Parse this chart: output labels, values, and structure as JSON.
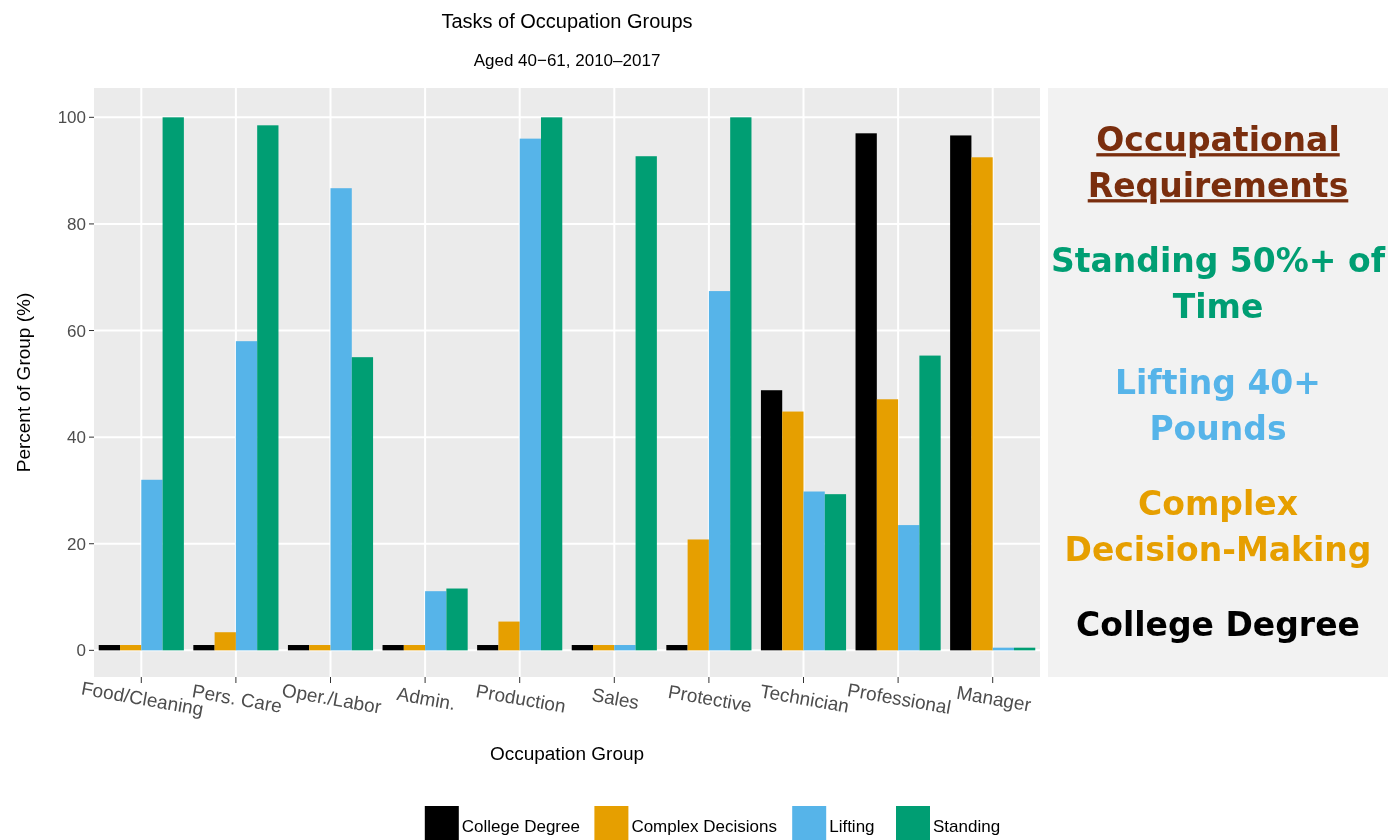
{
  "chart_data": {
    "type": "bar",
    "title": "Tasks of Occupation Groups",
    "subtitle": "Aged 40−61, 2010–2017",
    "xlabel": "Occupation Group",
    "ylabel": "Percent of Group (%)",
    "categories": [
      "Food/Cleaning",
      "Pers. Care",
      "Oper./Labor",
      "Admin.",
      "Production",
      "Sales",
      "Protective",
      "Technician",
      "Professional",
      "Manager"
    ],
    "series": [
      {
        "name": "College Degree",
        "color": "#000000",
        "values": [
          1,
          1,
          1,
          1,
          1,
          1,
          1,
          48.8,
          97,
          96.6
        ]
      },
      {
        "name": "Complex Decisions",
        "color": "#e69f00",
        "values": [
          1,
          3.4,
          1,
          1,
          5.4,
          1,
          20.8,
          44.8,
          47.1,
          92.5
        ]
      },
      {
        "name": "Lifting",
        "color": "#56b4e9",
        "values": [
          32,
          58,
          86.7,
          11.1,
          96,
          1,
          67.4,
          29.8,
          23.5,
          0.5
        ]
      },
      {
        "name": "Standing",
        "color": "#009e73",
        "values": [
          100,
          98.5,
          55,
          11.6,
          100,
          92.7,
          100,
          29.3,
          55.3,
          0.5
        ]
      }
    ],
    "ylim": [
      -5,
      105.5
    ],
    "yticks": [
      0,
      20,
      40,
      60,
      80,
      100
    ],
    "grid": true,
    "legend": "bottom",
    "annotations": [
      "Occupational Requirements",
      "Standing 50%+ of Time",
      "Lifting 40+ Pounds",
      "Complex Decision-Making",
      "College Degree"
    ]
  }
}
